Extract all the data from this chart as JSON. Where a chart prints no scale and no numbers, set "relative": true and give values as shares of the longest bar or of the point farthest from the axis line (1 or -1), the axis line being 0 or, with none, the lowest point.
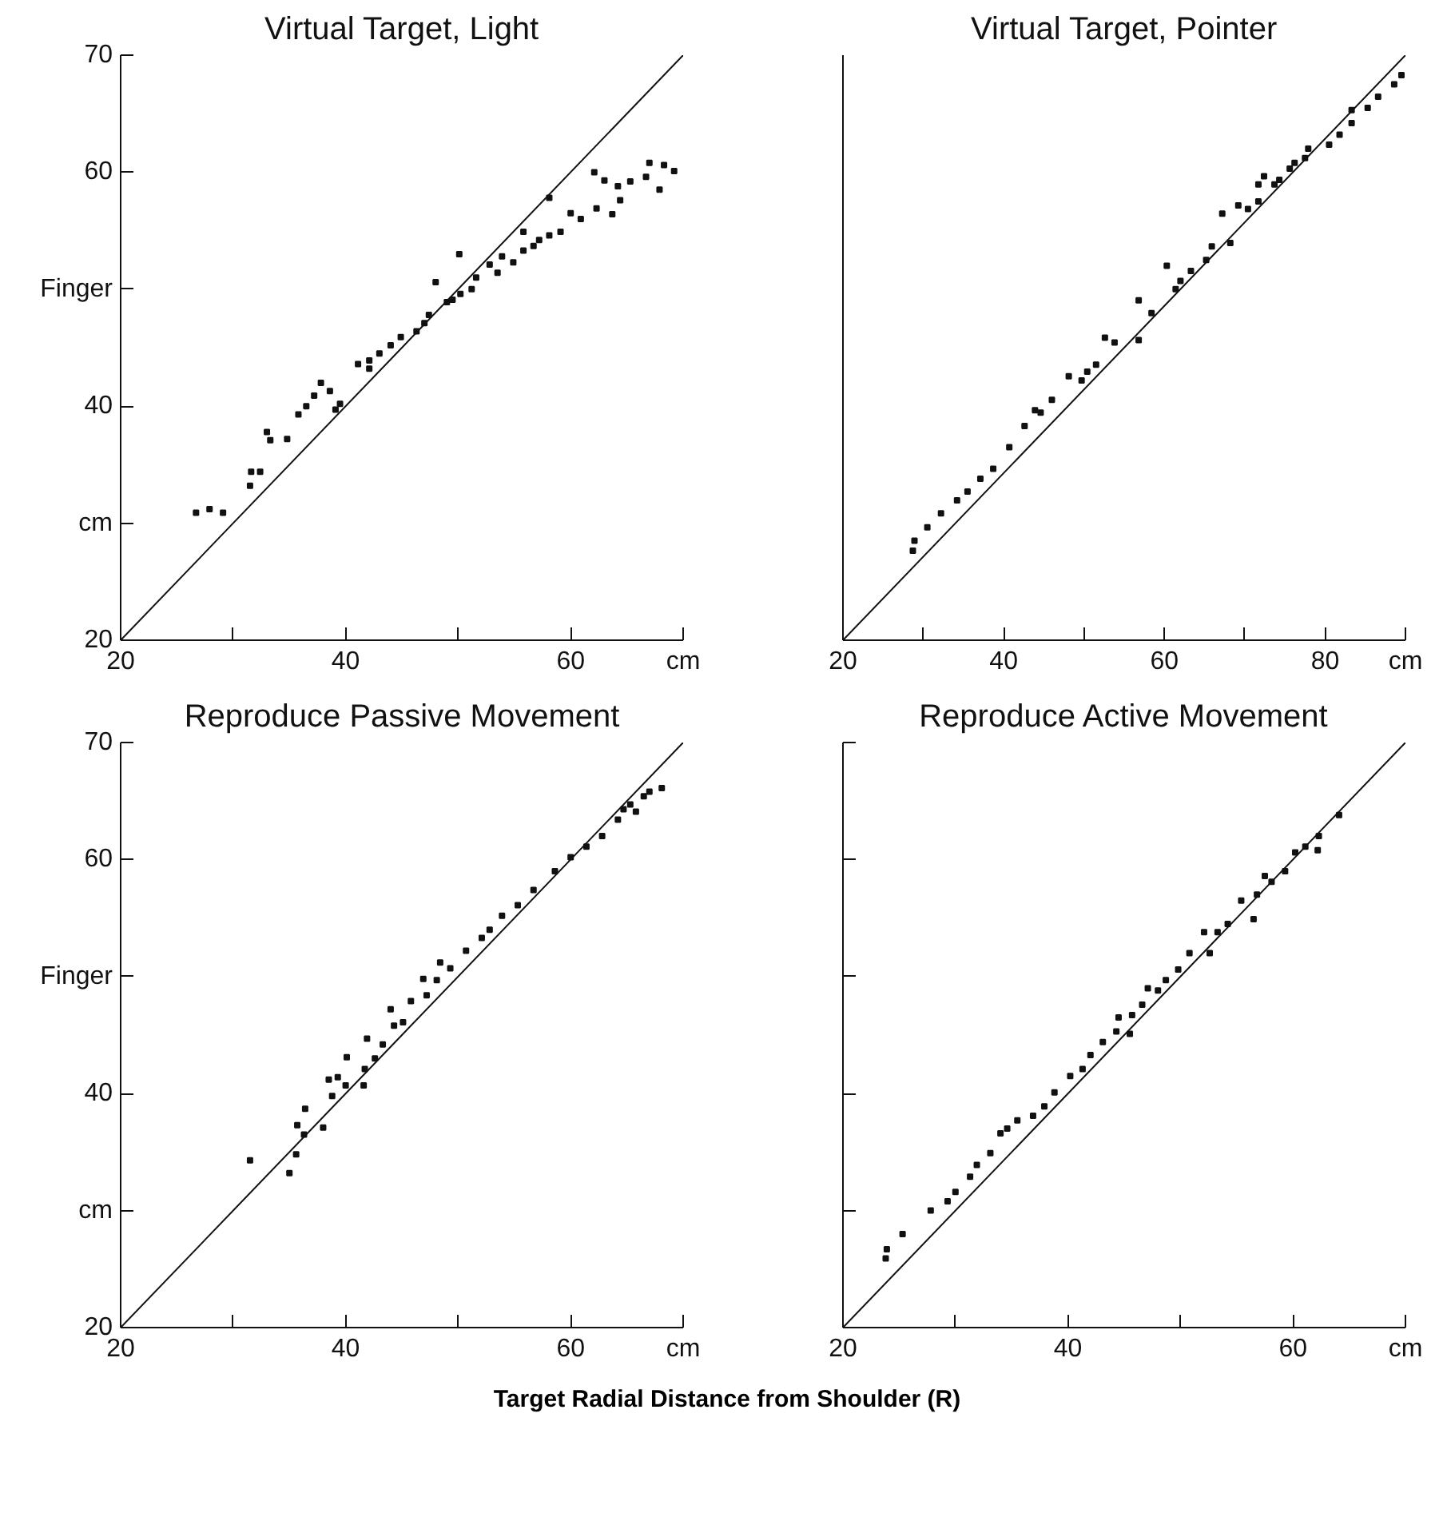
{
  "chart_data": [
    {
      "type": "scatter",
      "title": "Virtual Target, Light",
      "xlim": [
        20,
        70
      ],
      "ylim": [
        20,
        70
      ],
      "grid": false,
      "xticks": [
        20,
        {
          "value": 30,
          "label": null
        },
        40,
        {
          "value": 50,
          "label": null
        },
        60,
        {
          "value": 70,
          "label": "cm"
        }
      ],
      "yticks": [
        20,
        {
          "value": 30,
          "label": "cm"
        },
        40,
        {
          "value": 50,
          "label": "Finger"
        },
        60,
        70
      ],
      "series": [
        {
          "marker": "square",
          "color": "#111111",
          "x": [
            26.7,
            27.9,
            29.1,
            31.5,
            31.6,
            32.4,
            33.0,
            33.3,
            34.8,
            35.8,
            36.5,
            37.2,
            37.8,
            38.6,
            39.5,
            39.1,
            41.1,
            42.1,
            43.0,
            44.9,
            46.3,
            48.0,
            47.4,
            49.0,
            50.1,
            50.2,
            51.6,
            52.8,
            53.9,
            55.8,
            55.8,
            56.7,
            58.1,
            58.1,
            59.1,
            60.0,
            60.9,
            62.3,
            62.1,
            63.0,
            63.7,
            64.2,
            64.4,
            65.3,
            66.7,
            67.0,
            67.9,
            68.3,
            69.2,
            42.1,
            44.0,
            47.0,
            49.5,
            51.2,
            53.5,
            54.9,
            57.2
          ],
          "values": [
            30.9,
            31.2,
            30.9,
            33.2,
            34.4,
            34.4,
            37.8,
            37.1,
            37.2,
            39.3,
            40.0,
            40.9,
            42.0,
            41.3,
            40.2,
            39.7,
            43.6,
            43.2,
            44.5,
            45.9,
            46.4,
            50.6,
            47.8,
            48.9,
            53.0,
            49.6,
            51.0,
            52.1,
            52.8,
            54.9,
            53.3,
            53.7,
            57.8,
            54.6,
            54.9,
            56.5,
            56.0,
            56.9,
            60.0,
            59.3,
            56.4,
            58.8,
            57.6,
            59.2,
            59.6,
            60.8,
            58.5,
            60.6,
            60.1,
            43.9,
            45.2,
            47.1,
            49.1,
            50.0,
            51.4,
            52.3,
            54.2
          ]
        },
        {
          "type": "line",
          "color": "#111111",
          "x": [
            20,
            70
          ],
          "values": [
            20,
            70
          ]
        }
      ]
    },
    {
      "type": "scatter",
      "title": "Virtual Target, Pointer",
      "relative": true,
      "xlim": [
        20,
        90
      ],
      "grid": false,
      "tick_labels": "x",
      "xticks": [
        20,
        {
          "value": 30,
          "label": null
        },
        40,
        {
          "value": 50,
          "label": null
        },
        60,
        {
          "value": 70,
          "label": null
        },
        80,
        {
          "value": 90,
          "label": "cm"
        }
      ],
      "series": [
        {
          "marker": "square",
          "color": "#111111",
          "x": [
            28.7,
            28.9,
            30.5,
            32.2,
            34.2,
            35.5,
            37.1,
            38.7,
            40.7,
            42.6,
            44.6,
            46.0,
            48.1,
            49.7,
            51.5,
            53.8,
            52.6,
            56.8,
            56.8,
            58.4,
            60.3,
            61.4,
            63.3,
            65.2,
            67.2,
            68.2,
            69.2,
            70.4,
            71.7,
            71.7,
            72.4,
            74.3,
            75.6,
            77.5,
            77.9,
            80.5,
            81.8,
            83.3,
            83.3,
            85.3,
            86.6,
            88.6,
            89.5,
            65.9,
            73.7,
            76.2,
            43.9,
            50.4,
            62.0
          ],
          "values": [
            0.153,
            0.17,
            0.193,
            0.217,
            0.239,
            0.254,
            0.276,
            0.293,
            0.33,
            0.366,
            0.389,
            0.411,
            0.451,
            0.444,
            0.471,
            0.509,
            0.517,
            0.581,
            0.513,
            0.559,
            0.64,
            0.6,
            0.631,
            0.65,
            0.729,
            0.679,
            0.743,
            0.737,
            0.75,
            0.779,
            0.793,
            0.787,
            0.806,
            0.824,
            0.84,
            0.847,
            0.864,
            0.884,
            0.906,
            0.91,
            0.929,
            0.95,
            0.966,
            0.673,
            0.779,
            0.816,
            0.393,
            0.459,
            0.614
          ]
        },
        {
          "type": "line",
          "color": "#111111",
          "x": [
            20,
            90
          ],
          "values": [
            0,
            1
          ]
        }
      ]
    },
    {
      "type": "scatter",
      "title": "Reproduce Passive Movement",
      "xlabel": "Target Radial Distance from Shoulder (R)",
      "xlim": [
        20,
        70
      ],
      "ylim": [
        20,
        70
      ],
      "grid": false,
      "xticks": [
        20,
        {
          "value": 30,
          "label": null
        },
        40,
        {
          "value": 50,
          "label": null
        },
        60,
        {
          "value": 70,
          "label": "cm"
        }
      ],
      "yticks": [
        20,
        {
          "value": 30,
          "label": "cm"
        },
        40,
        {
          "value": 50,
          "label": "Finger"
        },
        60,
        70
      ],
      "series": [
        {
          "marker": "square",
          "color": "#111111",
          "x": [
            31.5,
            35.0,
            35.6,
            35.7,
            36.3,
            36.4,
            38.0,
            38.5,
            38.8,
            39.3,
            40.0,
            40.1,
            41.6,
            41.7,
            41.9,
            42.6,
            43.3,
            44.0,
            44.3,
            45.1,
            45.8,
            46.9,
            47.2,
            48.4,
            48.1,
            49.3,
            50.7,
            52.1,
            52.8,
            53.9,
            55.3,
            56.7,
            58.6,
            60.0,
            61.4,
            62.8,
            64.2,
            64.7,
            65.3,
            66.5,
            67.0,
            68.1,
            65.8
          ],
          "values": [
            34.3,
            33.2,
            34.8,
            37.3,
            36.5,
            38.7,
            37.1,
            41.2,
            39.8,
            41.4,
            40.7,
            43.1,
            40.7,
            42.1,
            44.7,
            43.0,
            44.2,
            47.2,
            45.8,
            46.1,
            47.9,
            49.8,
            48.4,
            51.2,
            49.7,
            50.7,
            52.2,
            53.3,
            54.0,
            55.2,
            56.1,
            57.4,
            59.0,
            60.2,
            61.1,
            62.0,
            63.4,
            64.3,
            64.7,
            65.4,
            65.8,
            66.1,
            64.1
          ]
        },
        {
          "type": "line",
          "color": "#111111",
          "x": [
            20,
            70
          ],
          "values": [
            20,
            70
          ]
        }
      ]
    },
    {
      "type": "scatter",
      "title": "Reproduce Active Movement",
      "xlim": [
        20,
        70
      ],
      "ylim": [
        20,
        70
      ],
      "grid": false,
      "tick_labels": "x",
      "xticks": [
        20,
        {
          "value": 30,
          "label": null
        },
        40,
        {
          "value": 50,
          "label": null
        },
        60,
        {
          "value": 70,
          "label": "cm"
        }
      ],
      "yticks": [
        {
          "value": 20,
          "label": null
        },
        {
          "value": 30,
          "label": null
        },
        {
          "value": 40,
          "label": null
        },
        {
          "value": 50,
          "label": null
        },
        {
          "value": 60,
          "label": null
        },
        {
          "value": 70,
          "label": null
        }
      ],
      "series": [
        {
          "marker": "square",
          "color": "#111111",
          "x": [
            23.8,
            23.9,
            25.3,
            27.8,
            29.3,
            30.0,
            31.3,
            31.9,
            33.1,
            34.0,
            34.6,
            35.5,
            36.9,
            37.9,
            38.8,
            40.2,
            41.3,
            42.0,
            43.1,
            44.5,
            44.3,
            45.5,
            45.7,
            47.1,
            46.6,
            48.0,
            48.7,
            49.8,
            50.8,
            52.1,
            52.6,
            53.3,
            54.2,
            55.4,
            56.5,
            56.8,
            57.5,
            58.1,
            59.3,
            60.2,
            61.1,
            62.3,
            62.2,
            64.1
          ],
          "values": [
            25.9,
            26.7,
            28.0,
            30.0,
            30.8,
            31.6,
            32.9,
            33.9,
            34.9,
            36.6,
            37.0,
            37.7,
            38.1,
            38.9,
            40.1,
            41.5,
            42.1,
            43.3,
            44.4,
            46.5,
            45.3,
            45.1,
            46.7,
            49.0,
            47.6,
            48.8,
            49.7,
            50.6,
            52.0,
            53.8,
            52.0,
            53.8,
            54.5,
            56.5,
            54.9,
            57.0,
            58.6,
            58.1,
            59.0,
            60.6,
            61.1,
            62.0,
            60.8,
            63.8
          ]
        },
        {
          "type": "line",
          "color": "#111111",
          "x": [
            20,
            70
          ],
          "values": [
            20,
            70
          ]
        }
      ]
    }
  ]
}
